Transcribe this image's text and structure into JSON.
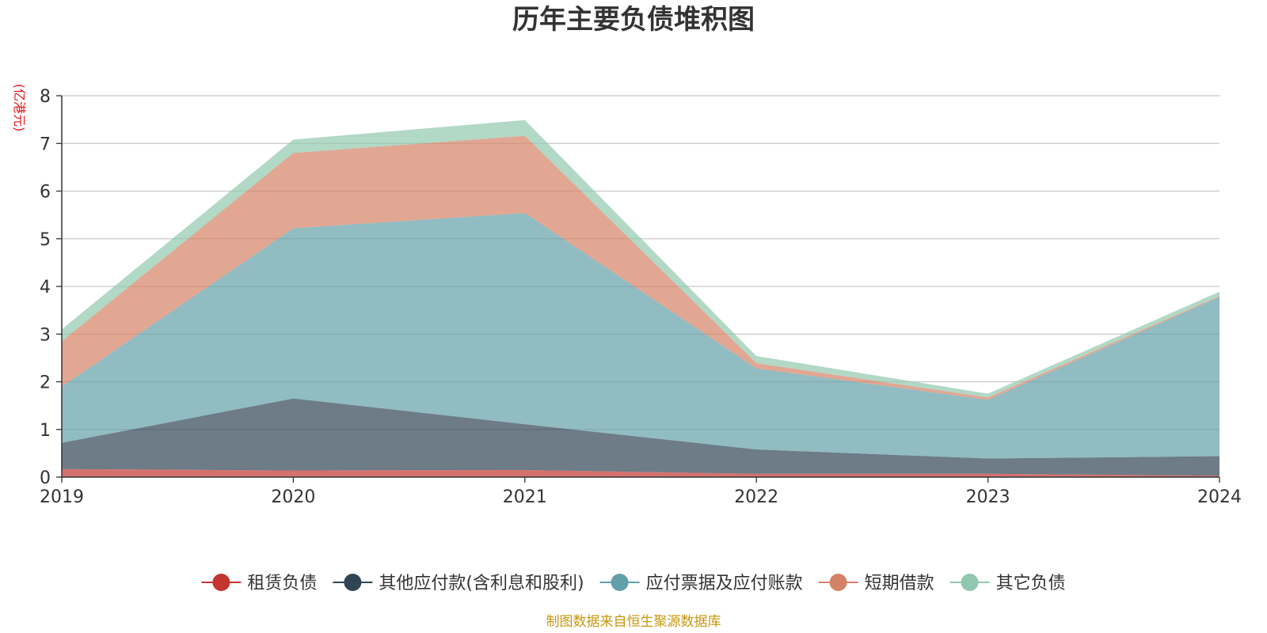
{
  "chart_data": {
    "type": "area",
    "stacked": true,
    "title": "历年主要负债堆积图",
    "unit": "(亿港元)",
    "x": [
      "2019",
      "2020",
      "2021",
      "2022",
      "2023",
      "2024"
    ],
    "ylim": [
      0,
      8
    ],
    "yticks": [
      "0",
      "1",
      "2",
      "3",
      "4",
      "5",
      "6",
      "7",
      "8"
    ],
    "grid": true,
    "legend_position": "bottom",
    "series": [
      {
        "name": "租赁负债",
        "color": "#c23531",
        "values": [
          0.17,
          0.14,
          0.15,
          0.07,
          0.07,
          0.03
        ]
      },
      {
        "name": "其他应付款(含利息和股利)",
        "color": "#2f4554",
        "values": [
          0.55,
          1.51,
          0.96,
          0.51,
          0.32,
          0.41
        ]
      },
      {
        "name": "应付票据及应付账款",
        "color": "#61a0a8",
        "values": [
          1.18,
          3.57,
          4.43,
          1.7,
          1.23,
          3.34
        ]
      },
      {
        "name": "短期借款",
        "color": "#d48265",
        "values": [
          0.95,
          1.58,
          1.62,
          0.11,
          0.05,
          0.02
        ]
      },
      {
        "name": "其它负债",
        "color": "#91c7ae",
        "values": [
          0.25,
          0.28,
          0.33,
          0.15,
          0.08,
          0.09
        ]
      }
    ]
  },
  "footer": {
    "source": "制图数据来自恒生聚源数据库"
  }
}
